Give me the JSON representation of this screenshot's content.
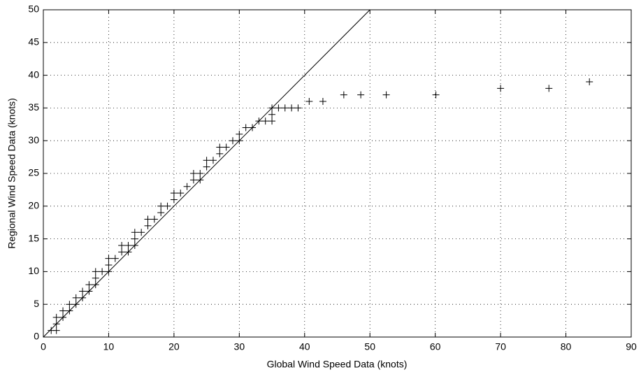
{
  "chart_data": {
    "type": "scatter",
    "x_label": "Global Wind Speed Data (knots)",
    "y_label": "Regional Wind Speed Data (knots)",
    "x": [
      1.2,
      2,
      2,
      2,
      3,
      3,
      4,
      4,
      5,
      5,
      6,
      6,
      7,
      7,
      8,
      8,
      8,
      9,
      10,
      10,
      10,
      11,
      12,
      12,
      13,
      13,
      14,
      14,
      14,
      15,
      16,
      16,
      17,
      18,
      18,
      19,
      20,
      20,
      21,
      22,
      23,
      23,
      24,
      24,
      25,
      25,
      26,
      27,
      27,
      28,
      29,
      30,
      30,
      31,
      32,
      33,
      34,
      35,
      35,
      35,
      36,
      37,
      38,
      39,
      40.7,
      42.8,
      46,
      48.6,
      52.5,
      60.1,
      70,
      77.4,
      83.6
    ],
    "y": [
      1,
      1,
      2,
      3,
      3,
      4,
      4,
      5,
      5,
      6,
      6,
      7,
      7,
      8,
      8,
      9,
      10,
      10,
      10,
      11,
      12,
      12,
      13,
      14,
      13,
      14,
      14,
      15,
      16,
      16,
      17,
      18,
      18,
      19,
      20,
      20,
      21,
      22,
      22,
      23,
      24,
      25,
      24,
      25,
      26,
      27,
      27,
      28,
      29,
      29,
      30,
      30,
      31,
      32,
      32,
      33,
      33,
      33,
      34,
      35,
      35,
      35,
      35,
      35,
      36,
      36,
      37,
      37,
      37,
      37,
      38,
      38,
      39
    ],
    "reference_line": {
      "x": [
        0,
        50
      ],
      "y": [
        0,
        50
      ]
    },
    "xlim": [
      0,
      90
    ],
    "xticks": [
      0,
      10,
      20,
      30,
      40,
      50,
      60,
      70,
      80,
      90
    ],
    "ylim": [
      0,
      50
    ],
    "yticks": [
      0,
      5,
      10,
      15,
      20,
      25,
      30,
      35,
      40,
      45,
      50
    ],
    "grid": true,
    "color": "#000000"
  }
}
